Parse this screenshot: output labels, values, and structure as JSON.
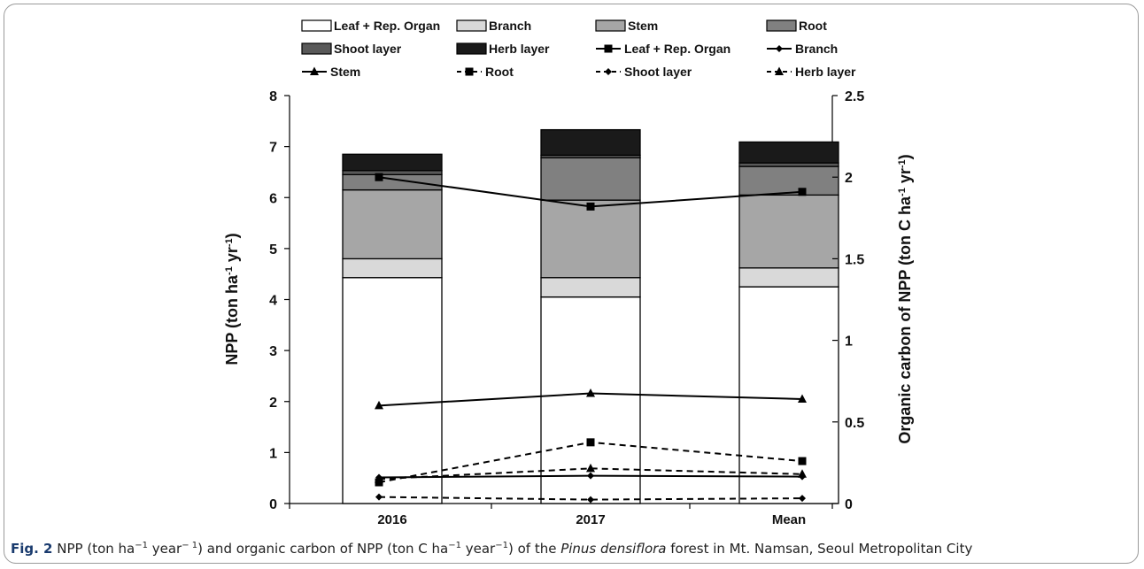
{
  "caption": {
    "fig_label": "Fig. 2",
    "part1": " NPP (ton ha",
    "sup1": "−1",
    "part2": " year",
    "sup2": "− 1",
    "part3": ") and organic carbon of NPP (ton C ha",
    "sup3": "−1",
    "part4": " year",
    "sup4": "−1",
    "part5": ") of the ",
    "species": "Pinus densiflora",
    "part6": " forest in Mt. Namsan, Seoul Metropolitan City"
  },
  "chart_data": {
    "type": "bar",
    "stacked": true,
    "categories": [
      "2016",
      "2017",
      "Mean"
    ],
    "ylabel": "NPP (ton ha-1 yr-1)",
    "y2label": "Organic carbon of NPP (ton C ha-1 yr-1)",
    "ylim": [
      0,
      8
    ],
    "y2lim": [
      0,
      2.5
    ],
    "yticks": [
      "0",
      "1",
      "2",
      "3",
      "4",
      "5",
      "6",
      "7",
      "8"
    ],
    "y2ticks": [
      "0",
      "0.5",
      "1",
      "1.5",
      "2",
      "2.5"
    ],
    "grid": false,
    "legend_position": "top",
    "bar_series": [
      {
        "name": "Leaf + Rep. Organ",
        "values": [
          4.43,
          4.05,
          4.25
        ],
        "color": "#ffffff"
      },
      {
        "name": "Branch",
        "values": [
          0.37,
          0.38,
          0.37
        ],
        "color": "#d9d9d9"
      },
      {
        "name": "Stem",
        "values": [
          1.35,
          1.52,
          1.43
        ],
        "color": "#a6a6a6"
      },
      {
        "name": "Root",
        "values": [
          0.3,
          0.83,
          0.56
        ],
        "color": "#808080"
      },
      {
        "name": "Shoot layer",
        "values": [
          0.08,
          0.05,
          0.07
        ],
        "color": "#595959"
      },
      {
        "name": "Herb layer",
        "values": [
          0.32,
          0.5,
          0.41
        ],
        "color": "#1a1a1a"
      }
    ],
    "line_series": [
      {
        "name": "Leaf + Rep. Organ",
        "values": [
          2.0,
          1.82,
          1.91
        ],
        "marker": "square",
        "dash": false
      },
      {
        "name": "Branch",
        "values": [
          0.16,
          0.17,
          0.165
        ],
        "marker": "diamond",
        "dash": false
      },
      {
        "name": "Stem",
        "values": [
          0.6,
          0.675,
          0.64
        ],
        "marker": "triangle",
        "dash": false
      },
      {
        "name": "Root",
        "values": [
          0.13,
          0.375,
          0.26
        ],
        "marker": "square",
        "dash": true
      },
      {
        "name": "Shoot layer",
        "values": [
          0.04,
          0.024,
          0.032
        ],
        "marker": "diamond",
        "dash": true
      },
      {
        "name": "Herb layer",
        "values": [
          0.15,
          0.215,
          0.18
        ],
        "marker": "triangle",
        "dash": true
      }
    ]
  }
}
